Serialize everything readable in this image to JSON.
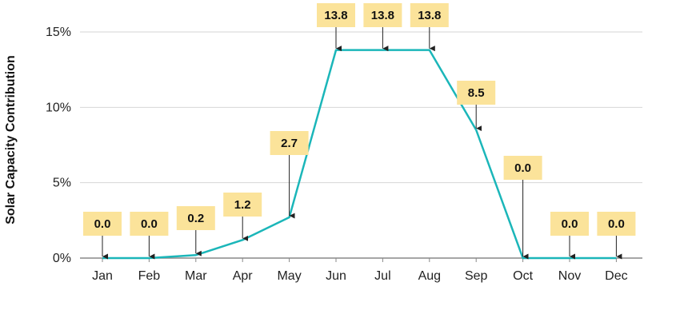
{
  "chart_data": {
    "type": "line",
    "categories": [
      "Jan",
      "Feb",
      "Mar",
      "Apr",
      "May",
      "Jun",
      "Jul",
      "Aug",
      "Sep",
      "Oct",
      "Nov",
      "Dec"
    ],
    "values": [
      0.0,
      0.0,
      0.2,
      1.2,
      2.7,
      13.8,
      13.8,
      13.8,
      8.5,
      0.0,
      0.0,
      0.0
    ],
    "value_labels": [
      "0.0",
      "0.0",
      "0.2",
      "1.2",
      "2.7",
      "13.8",
      "13.8",
      "13.8",
      "8.5",
      "0.0",
      "0.0",
      "0.0"
    ],
    "ylabel": "Solar Capacity Contribution",
    "ylim": [
      0,
      15
    ],
    "yticks": [
      0,
      5,
      10,
      15
    ],
    "ytick_labels": [
      "0%",
      "5%",
      "10%",
      "15%"
    ],
    "grid": true,
    "colors": {
      "line": "#1bb6b9",
      "callout_fill": "#fbe39a",
      "grid": "#d6d6d6",
      "axis": "#888888"
    }
  }
}
